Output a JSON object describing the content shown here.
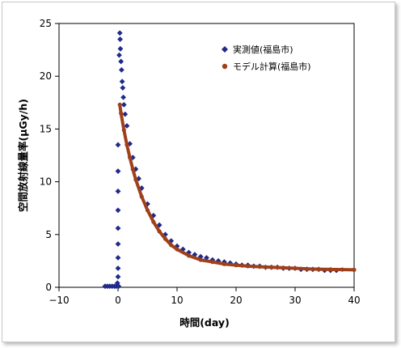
{
  "chart_data": {
    "type": "scatter",
    "xlabel": "時間(day)",
    "ylabel": "空間放射線量率(μGy/h)",
    "xlim": [
      -10,
      40
    ],
    "ylim": [
      0,
      25
    ],
    "xticks": [
      "−10",
      "0",
      "10",
      "20",
      "30",
      "40"
    ],
    "yticks": [
      "0",
      "5",
      "10",
      "15",
      "20",
      "25"
    ],
    "grid": false,
    "legend_position": "top-right",
    "series": [
      {
        "name": "実測値(福島市)",
        "marker": "diamond",
        "color": "#1f2a8a",
        "points": [
          [
            -2.2,
            0.1
          ],
          [
            -1.8,
            0.1
          ],
          [
            -1.4,
            0.1
          ],
          [
            -1.0,
            0.1
          ],
          [
            -0.6,
            0.1
          ],
          [
            -0.3,
            0.1
          ],
          [
            -0.1,
            0.4
          ],
          [
            0.0,
            1.0
          ],
          [
            0.0,
            1.8
          ],
          [
            0.0,
            2.8
          ],
          [
            0.0,
            4.1
          ],
          [
            0.0,
            5.6
          ],
          [
            0.0,
            7.3
          ],
          [
            0.0,
            9.1
          ],
          [
            0.0,
            11.0
          ],
          [
            0.0,
            13.5
          ],
          [
            0.1,
            0.1
          ],
          [
            0.2,
            22.0
          ],
          [
            0.3,
            24.1
          ],
          [
            0.35,
            23.5
          ],
          [
            0.4,
            22.6
          ],
          [
            0.5,
            21.4
          ],
          [
            0.6,
            20.6
          ],
          [
            0.7,
            19.5
          ],
          [
            0.8,
            18.9
          ],
          [
            0.9,
            18.0
          ],
          [
            1.0,
            17.3
          ],
          [
            1.2,
            16.4
          ],
          [
            1.5,
            15.3
          ],
          [
            2.0,
            13.6
          ],
          [
            2.5,
            12.3
          ],
          [
            3.0,
            11.2
          ],
          [
            3.5,
            10.3
          ],
          [
            4.0,
            9.4
          ],
          [
            5.0,
            7.9
          ],
          [
            6.0,
            6.8
          ],
          [
            7.0,
            5.9
          ],
          [
            8.0,
            5.0
          ],
          [
            9.0,
            4.4
          ],
          [
            10.0,
            3.9
          ],
          [
            11.0,
            3.6
          ],
          [
            12.0,
            3.3
          ],
          [
            13.0,
            3.1
          ],
          [
            14.0,
            2.9
          ],
          [
            15.0,
            2.8
          ],
          [
            16.0,
            2.6
          ],
          [
            17.0,
            2.5
          ],
          [
            18.0,
            2.4
          ],
          [
            19.0,
            2.3
          ],
          [
            20.0,
            2.2
          ],
          [
            21.0,
            2.1
          ],
          [
            22.0,
            2.1
          ],
          [
            23.0,
            2.0
          ],
          [
            24.0,
            2.0
          ],
          [
            25.0,
            1.9
          ],
          [
            26.0,
            1.9
          ],
          [
            27.0,
            1.9
          ],
          [
            28.0,
            1.8
          ],
          [
            29.0,
            1.8
          ],
          [
            30.0,
            1.8
          ],
          [
            31.0,
            1.7
          ],
          [
            32.0,
            1.7
          ],
          [
            33.0,
            1.7
          ],
          [
            34.0,
            1.7
          ],
          [
            35.0,
            1.6
          ],
          [
            36.0,
            1.6
          ],
          [
            37.0,
            1.6
          ]
        ]
      },
      {
        "name": "モデル計算(福島市)",
        "marker": "circle",
        "color": "#a0401a",
        "points": [
          [
            0.3,
            17.3
          ],
          [
            0.5,
            16.5
          ],
          [
            1.0,
            14.9
          ],
          [
            1.5,
            13.5
          ],
          [
            2.0,
            12.3
          ],
          [
            2.5,
            11.2
          ],
          [
            3.0,
            10.2
          ],
          [
            4.0,
            8.6
          ],
          [
            5.0,
            7.3
          ],
          [
            6.0,
            6.2
          ],
          [
            7.0,
            5.3
          ],
          [
            8.0,
            4.6
          ],
          [
            9.0,
            4.0
          ],
          [
            10.0,
            3.6
          ],
          [
            12.0,
            3.0
          ],
          [
            14.0,
            2.6
          ],
          [
            16.0,
            2.4
          ],
          [
            18.0,
            2.2
          ],
          [
            20.0,
            2.1
          ],
          [
            22.0,
            2.0
          ],
          [
            24.0,
            1.95
          ],
          [
            26.0,
            1.9
          ],
          [
            28.0,
            1.85
          ],
          [
            30.0,
            1.8
          ],
          [
            32.0,
            1.75
          ],
          [
            34.0,
            1.72
          ],
          [
            36.0,
            1.7
          ],
          [
            38.0,
            1.68
          ],
          [
            40.0,
            1.66
          ]
        ]
      }
    ]
  }
}
